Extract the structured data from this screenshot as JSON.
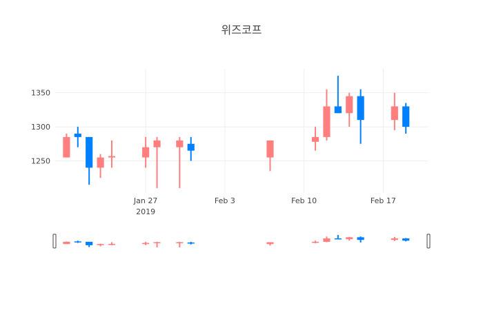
{
  "chart_data": {
    "type": "candlestick",
    "title": "위즈코프",
    "xlabel": "",
    "ylabel": "",
    "x_range": [
      "2019-01-19",
      "2019-02-21"
    ],
    "ylim": [
      1203,
      1385
    ],
    "y_ticks": [
      1250,
      1300,
      1350
    ],
    "x_ticks": [
      {
        "date": "2019-01-27",
        "label": "Jan 27",
        "sublabel": "2019"
      },
      {
        "date": "2019-02-03",
        "label": "Feb 3",
        "sublabel": ""
      },
      {
        "date": "2019-02-10",
        "label": "Feb 10",
        "sublabel": ""
      },
      {
        "date": "2019-02-17",
        "label": "Feb 17",
        "sublabel": ""
      }
    ],
    "increasing_color": "#FF7F7F",
    "decreasing_color": "#007FFF",
    "grid": true,
    "legend": false,
    "range_slider": true,
    "candles": [
      {
        "date": "2019-01-20",
        "open": 1255,
        "high": 1290,
        "low": 1255,
        "close": 1285
      },
      {
        "date": "2019-01-21",
        "open": 1290,
        "high": 1300,
        "low": 1270,
        "close": 1285
      },
      {
        "date": "2019-01-22",
        "open": 1285,
        "high": 1285,
        "low": 1215,
        "close": 1240
      },
      {
        "date": "2019-01-23",
        "open": 1240,
        "high": 1260,
        "low": 1225,
        "close": 1255
      },
      {
        "date": "2019-01-24",
        "open": 1255,
        "high": 1280,
        "low": 1240,
        "close": 1257
      },
      {
        "date": "2019-01-27",
        "open": 1255,
        "high": 1285,
        "low": 1240,
        "close": 1270
      },
      {
        "date": "2019-01-28",
        "open": 1270,
        "high": 1285,
        "low": 1210,
        "close": 1280
      },
      {
        "date": "2019-01-30",
        "open": 1270,
        "high": 1285,
        "low": 1210,
        "close": 1280
      },
      {
        "date": "2019-01-31",
        "open": 1275,
        "high": 1285,
        "low": 1250,
        "close": 1265
      },
      {
        "date": "2019-02-07",
        "open": 1255,
        "high": 1280,
        "low": 1235,
        "close": 1280
      },
      {
        "date": "2019-02-11",
        "open": 1278,
        "high": 1300,
        "low": 1265,
        "close": 1285
      },
      {
        "date": "2019-02-12",
        "open": 1285,
        "high": 1355,
        "low": 1280,
        "close": 1330
      },
      {
        "date": "2019-02-13",
        "open": 1330,
        "high": 1375,
        "low": 1320,
        "close": 1320
      },
      {
        "date": "2019-02-14",
        "open": 1320,
        "high": 1350,
        "low": 1300,
        "close": 1345
      },
      {
        "date": "2019-02-15",
        "open": 1345,
        "high": 1355,
        "low": 1275,
        "close": 1310
      },
      {
        "date": "2019-02-18",
        "open": 1310,
        "high": 1350,
        "low": 1295,
        "close": 1330
      },
      {
        "date": "2019-02-19",
        "open": 1330,
        "high": 1335,
        "low": 1290,
        "close": 1300
      }
    ]
  }
}
